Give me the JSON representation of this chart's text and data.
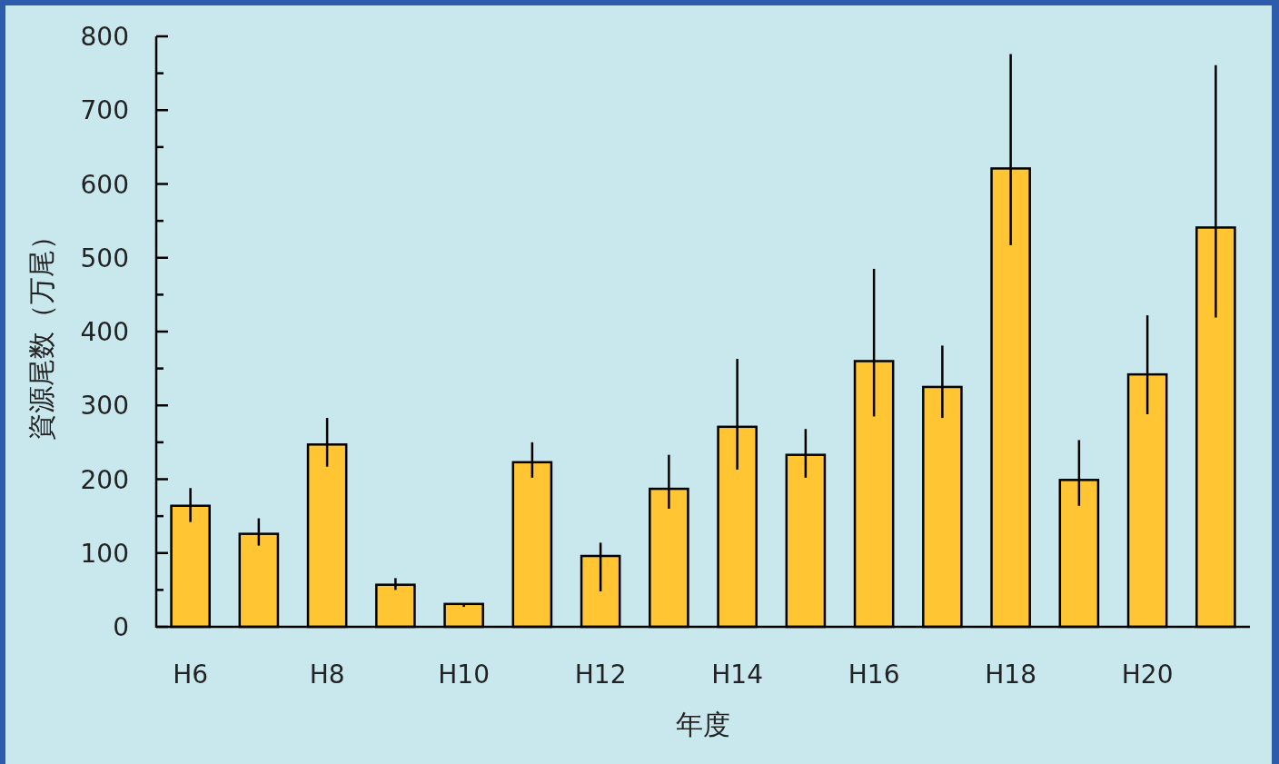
{
  "chart_data": {
    "type": "bar",
    "xlabel": "年度",
    "ylabel": "資源尾数（万尾）",
    "categories": [
      "H6",
      null,
      "H8",
      null,
      "H10",
      null,
      "H12",
      null,
      "H14",
      null,
      "H16",
      null,
      "H18",
      null,
      "H20",
      null
    ],
    "values": [
      164,
      126,
      247,
      57,
      31,
      223,
      96,
      187,
      271,
      233,
      360,
      325,
      621,
      199,
      342,
      541
    ],
    "errors": [
      [
        142,
        188
      ],
      [
        110,
        147
      ],
      [
        217,
        283
      ],
      [
        50,
        66
      ],
      [
        27,
        32
      ],
      [
        202,
        250
      ],
      [
        48,
        114
      ],
      [
        160,
        233
      ],
      [
        213,
        363
      ],
      [
        202,
        268
      ],
      [
        285,
        485
      ],
      [
        283,
        381
      ],
      [
        517,
        776
      ],
      [
        164,
        253
      ],
      [
        288,
        422
      ],
      [
        419,
        761
      ]
    ],
    "color": "#ffc532",
    "ylim": [
      0,
      800
    ],
    "yticks": [
      0,
      {
        "value": 50,
        "label": null
      },
      100,
      {
        "value": 150,
        "label": null
      },
      200,
      {
        "value": 250,
        "label": null
      },
      300,
      {
        "value": 350,
        "label": null
      },
      400,
      {
        "value": 450,
        "label": null
      },
      500,
      {
        "value": 550,
        "label": null
      },
      600,
      {
        "value": 650,
        "label": null
      },
      700,
      {
        "value": 750,
        "label": null
      },
      800
    ],
    "grid": false
  }
}
